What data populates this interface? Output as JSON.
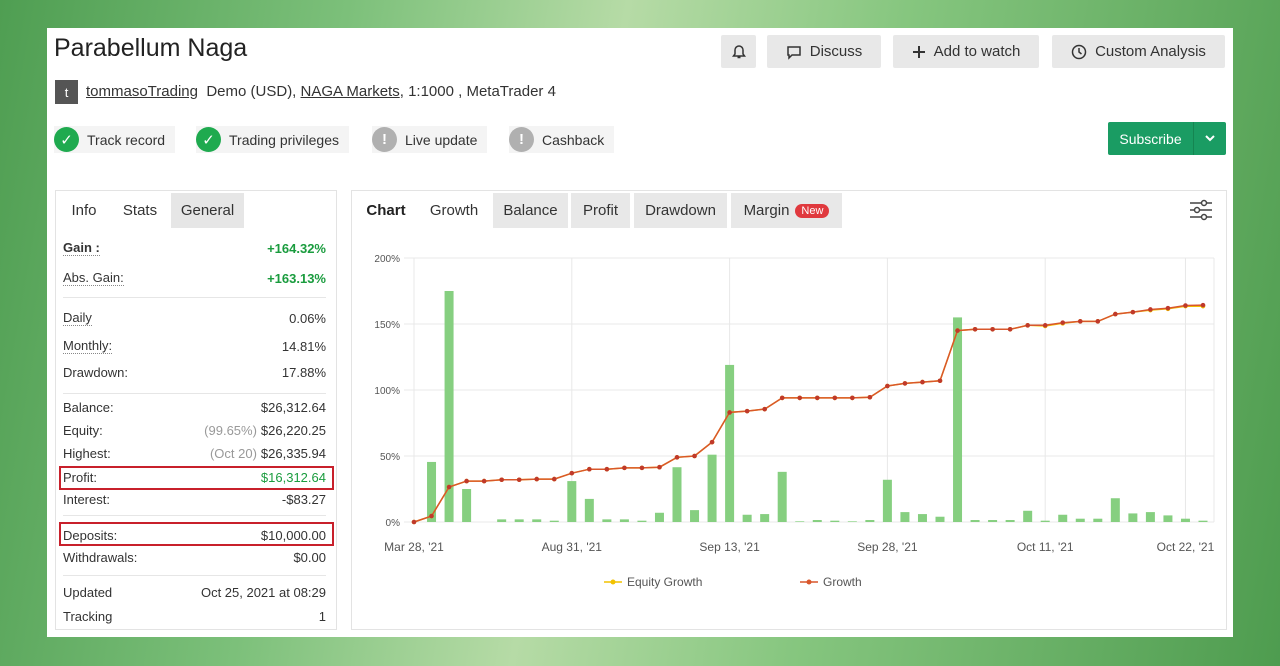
{
  "header": {
    "title": "Parabellum Naga",
    "buttons": [
      "Discuss",
      "Add to watch",
      "Custom Analysis"
    ]
  },
  "account": {
    "avatar": "t",
    "user": "tommasoTrading",
    "details": "Demo (USD),",
    "broker": "NAGA Markets",
    "rest": ", 1:1000 , MetaTrader 4"
  },
  "badges": [
    "Track record",
    "Trading privileges",
    "Live update",
    "Cashback"
  ],
  "subscribe": "Subscribe",
  "info_tabs": [
    "Info",
    "Stats",
    "General"
  ],
  "stats": [
    {
      "label": "Gain :",
      "value": "+164.32%"
    },
    {
      "label": "Abs. Gain:",
      "value": "+163.13%"
    },
    {
      "label": "Daily",
      "value": "0.06%"
    },
    {
      "label": "Monthly:",
      "value": "14.81%"
    },
    {
      "label": "Drawdown:",
      "value": "17.88%"
    },
    {
      "label": "Balance:",
      "value": "$26,312.64"
    },
    {
      "label": "Equity:",
      "note": "(99.65%)",
      "value": "$26,220.25"
    },
    {
      "label": "Highest:",
      "note": "(Oct 20)",
      "value": "$26,335.94"
    },
    {
      "label": "Profit:",
      "value": "$16,312.64"
    },
    {
      "label": "Interest:",
      "value": "-$83.27"
    },
    {
      "label": "Deposits:",
      "value": "$10,000.00"
    },
    {
      "label": "Withdrawals:",
      "value": "$0.00"
    },
    {
      "label": "Updated",
      "value": "Oct 25, 2021 at 08:29"
    },
    {
      "label": "Tracking",
      "value": "1"
    }
  ],
  "chart_tabs": [
    "Chart",
    "Growth",
    "Balance",
    "Profit",
    "Drawdown",
    "Margin"
  ],
  "new_badge": "New",
  "chart_data": {
    "type": "bar-line",
    "categories": [
      "Mar 28, '21",
      null,
      null,
      null,
      null,
      null,
      null,
      null,
      null,
      "Aug 31, '21",
      null,
      null,
      null,
      null,
      null,
      null,
      null,
      null,
      "Sep 13, '21",
      null,
      null,
      null,
      null,
      null,
      null,
      null,
      null,
      "Sep 28, '21",
      null,
      null,
      null,
      null,
      null,
      null,
      null,
      null,
      "Oct 11, '21",
      null,
      null,
      null,
      null,
      null,
      null,
      null,
      "Oct 22, '21",
      null
    ],
    "series": [
      {
        "type": "bar",
        "color": "#86cf80",
        "values": [
          0,
          45.5,
          175,
          25,
          0,
          2,
          2,
          2,
          1,
          31,
          17.5,
          2,
          2,
          1,
          7,
          41.5,
          9,
          51,
          119,
          5.5,
          6,
          38,
          0.5,
          1.5,
          1,
          0.5,
          1.5,
          32,
          7.5,
          6,
          4,
          155,
          1.5,
          1.5,
          1.5,
          8.5,
          1,
          5.5,
          2.5,
          2.5,
          18,
          6.5,
          7.5,
          5,
          2.5,
          1
        ]
      },
      {
        "name": "Equity Growth",
        "type": "line",
        "color": "#f2c200",
        "values": [
          0,
          4.5,
          26.5,
          31,
          31,
          32,
          32,
          32.5,
          32.5,
          37,
          40,
          40,
          41,
          41,
          41.5,
          49,
          50,
          60.5,
          83,
          84,
          85.5,
          94,
          94,
          94,
          94,
          94,
          94.5,
          103,
          105,
          106,
          107,
          145,
          146,
          146,
          146,
          149,
          148.5,
          150.5,
          152,
          152,
          157.5,
          159,
          160.5,
          161.5,
          163.5,
          163.5
        ]
      },
      {
        "name": "Growth",
        "type": "line",
        "color": "#d9572b",
        "values": [
          0,
          4.5,
          26.5,
          31,
          31,
          32,
          32,
          32.5,
          32.5,
          37,
          40,
          40,
          41,
          41,
          41.5,
          49,
          50,
          60.5,
          83,
          84,
          85.5,
          94,
          94,
          94,
          94,
          94,
          94.5,
          103,
          105,
          106,
          107,
          145,
          146,
          146,
          146,
          149,
          149,
          151,
          152,
          152,
          157.5,
          159,
          161,
          162,
          164,
          164.3
        ]
      }
    ],
    "ylim": [
      0,
      200
    ],
    "yticks": [
      {
        "value": 0,
        "label": "0%"
      },
      {
        "value": 50,
        "label": "50%"
      },
      {
        "value": 100,
        "label": "100%"
      },
      {
        "value": 150,
        "label": "150%"
      },
      {
        "value": 200,
        "label": "200%"
      }
    ],
    "grid": true
  }
}
